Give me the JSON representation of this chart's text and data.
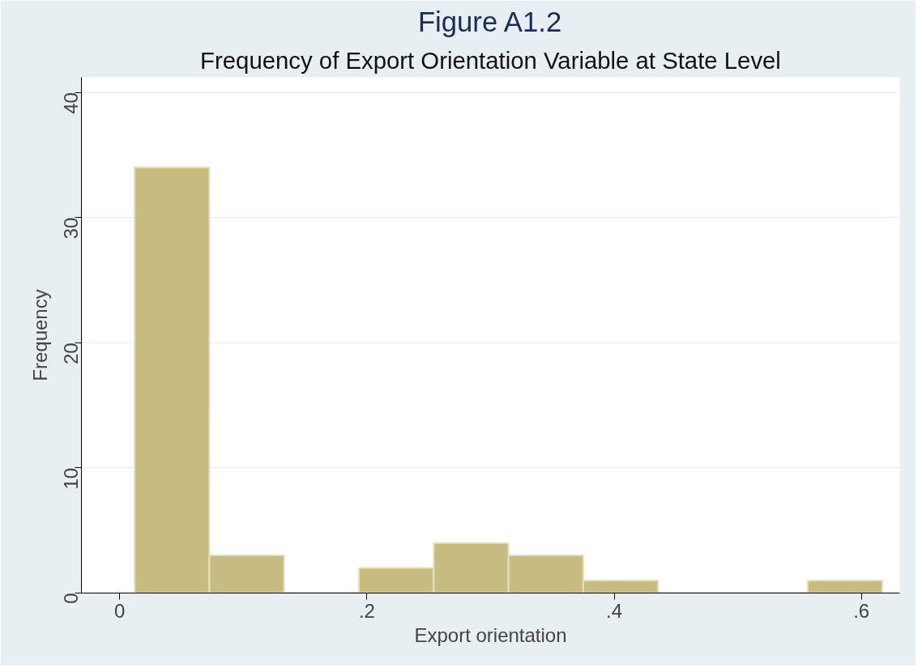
{
  "chart_data": {
    "type": "histogram",
    "title": "Figure A1.2",
    "subtitle": "Frequency of Export Orientation Variable at State Level",
    "xlabel": "Export orientation",
    "ylabel": "Frequency",
    "bins": [
      0.012,
      0.0725,
      0.133,
      0.1935,
      0.254,
      0.3145,
      0.375,
      0.4355,
      0.496,
      0.5565,
      0.617
    ],
    "values": [
      34,
      3,
      0,
      2,
      4,
      3,
      1,
      0,
      0,
      1
    ],
    "color": "#c8bd80",
    "xlim": [
      -0.031,
      0.631
    ],
    "ylim": [
      0,
      41.2
    ],
    "xticks": [
      {
        "value": 0,
        "label": "0"
      },
      {
        "value": 0.2,
        "label": ".2"
      },
      {
        "value": 0.4,
        "label": ".4"
      },
      {
        "value": 0.6,
        "label": ".6"
      }
    ],
    "yticks": [
      0,
      10,
      20,
      30,
      40
    ],
    "grid": "y"
  }
}
